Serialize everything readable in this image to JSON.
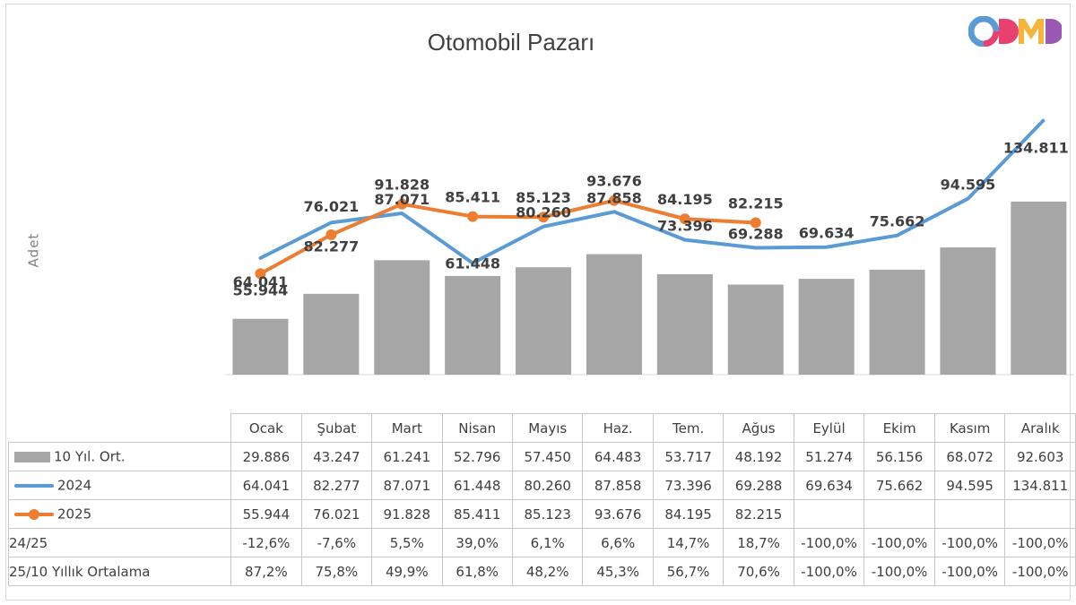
{
  "chart_data": {
    "type": "bar+line",
    "title": "Otomobil Pazarı",
    "ylabel": "Adet",
    "categories": [
      "Ocak",
      "Şubat",
      "Mart",
      "Nisan",
      "Mayıs",
      "Haz.",
      "Tem.",
      "Ağus",
      "Eylül",
      "Ekim",
      "Kasım",
      "Aralık"
    ],
    "series": [
      {
        "name": "10 Yıl. Ort.",
        "kind": "bar",
        "color": "#a6a6a6",
        "values": [
          29886,
          43247,
          61241,
          52796,
          57450,
          64483,
          53717,
          48192,
          51274,
          56156,
          68072,
          92603
        ],
        "labels": [
          "29.886",
          "43.247",
          "61.241",
          "52.796",
          "57.450",
          "64.483",
          "53.717",
          "48.192",
          "51.274",
          "56.156",
          "68.072",
          "92.603"
        ]
      },
      {
        "name": "2024",
        "kind": "line",
        "color": "#5b9bd5",
        "values": [
          64041,
          82277,
          87071,
          61448,
          80260,
          87858,
          73396,
          69288,
          69634,
          75662,
          94595,
          134811
        ],
        "labels": [
          "64.041",
          "82.277",
          "87.071",
          "61.448",
          "80.260",
          "87.858",
          "73.396",
          "69.288",
          "69.634",
          "75.662",
          "94.595",
          "134.811"
        ]
      },
      {
        "name": "2025",
        "kind": "line-marker",
        "color": "#ed7d31",
        "values": [
          55944,
          76021,
          91828,
          85411,
          85123,
          93676,
          84195,
          82215,
          null,
          null,
          null,
          null
        ],
        "labels": [
          "55.944",
          "76.021",
          "91.828",
          "85.411",
          "85.123",
          "93.676",
          "84.195",
          "82.215",
          "",
          "",
          "",
          ""
        ]
      }
    ],
    "table_rows": [
      {
        "name": "24/25",
        "values": [
          "-12,6%",
          "-7,6%",
          "5,5%",
          "39,0%",
          "6,1%",
          "6,6%",
          "14,7%",
          "18,7%",
          "-100,0%",
          "-100,0%",
          "-100,0%",
          "-100,0%"
        ]
      },
      {
        "name": "25/10 Yıllık Ortalama",
        "values": [
          "87,2%",
          "75,8%",
          "49,9%",
          "61,8%",
          "48,2%",
          "45,3%",
          "56,7%",
          "70,6%",
          "-100,0%",
          "-100,0%",
          "-100,0%",
          "-100,0%"
        ]
      }
    ],
    "label_positions": {
      "2024": [
        "below",
        "below",
        "above",
        "center",
        "above",
        "above",
        "above",
        "above",
        "above",
        "above",
        "above",
        "above"
      ],
      "2025": [
        "above",
        "above",
        "above",
        "above",
        "above",
        "above",
        "above",
        "above",
        "",
        "",
        "",
        ""
      ]
    }
  },
  "logo": {
    "text": "ODMD",
    "colors": [
      "#5b9bd5",
      "#e8416f",
      "#f6b43c",
      "#9b59b6"
    ]
  }
}
